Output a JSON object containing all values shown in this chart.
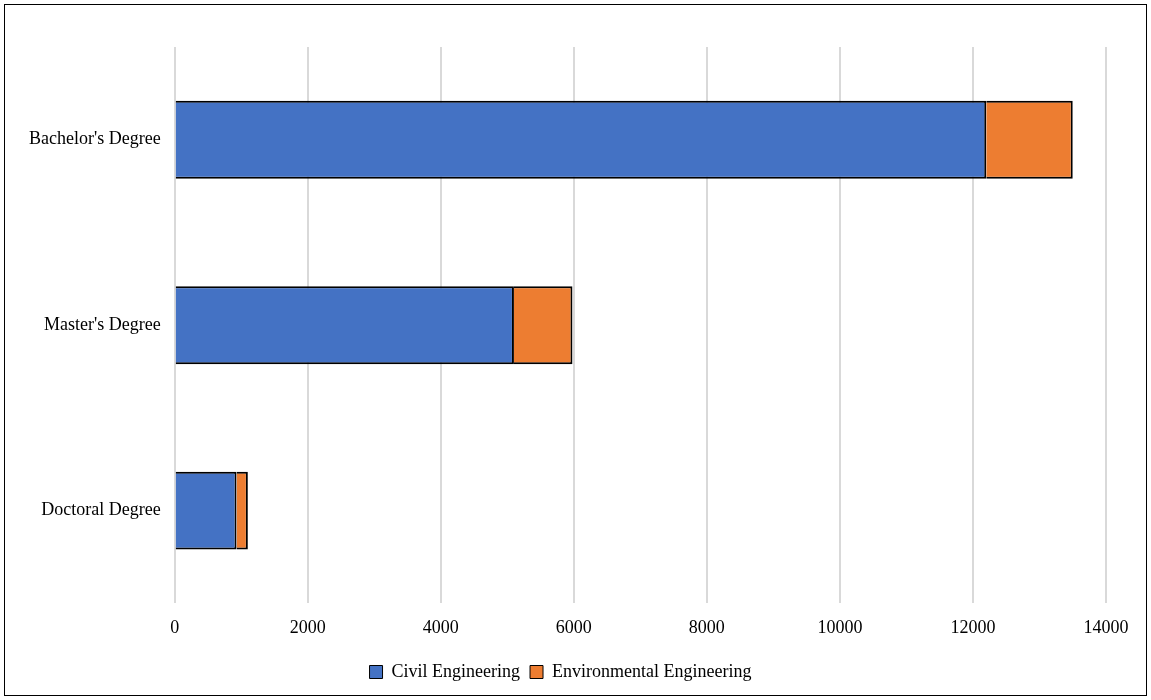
{
  "chart_data": {
    "type": "bar",
    "orientation": "horizontal",
    "stacked": true,
    "categories": [
      "Bachelor's Degree",
      "Master's Degree",
      "Doctoral Degree"
    ],
    "series": [
      {
        "name": "Civil Engineering",
        "color": "#4472c4",
        "values": [
          12200,
          5100,
          930
        ]
      },
      {
        "name": "Environmental Engineering",
        "color": "#ed7d31",
        "values": [
          1300,
          880,
          170
        ]
      }
    ],
    "xlim": [
      0,
      14000
    ],
    "xticks": [
      0,
      2000,
      4000,
      6000,
      8000,
      10000,
      12000,
      14000
    ],
    "grid": "x",
    "legend": "bottom"
  }
}
